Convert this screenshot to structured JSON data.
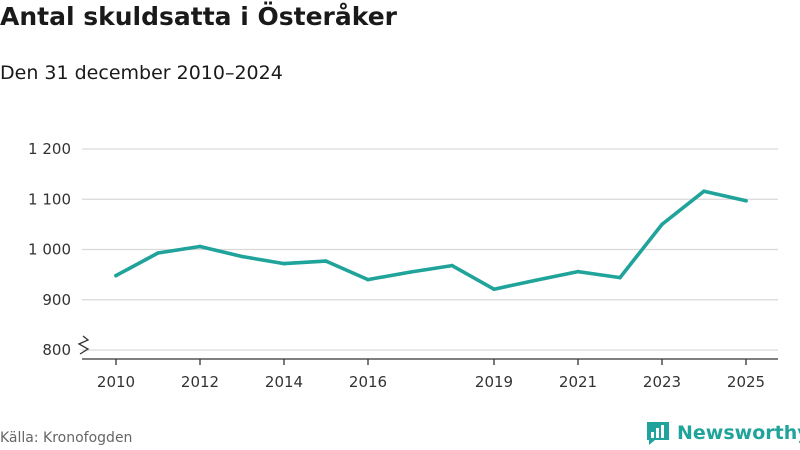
{
  "header": {
    "title": "Antal skuldsatta i Österåker",
    "subtitle": "Den 31 december 2010–2024"
  },
  "footer": {
    "source": "Källa: Kronofogden",
    "brand": "Newsworthy"
  },
  "colors": {
    "line": "#1fa39a",
    "grid": "#d9d9d9",
    "axis": "#333333",
    "brand": "#20a39b"
  },
  "chart_data": {
    "type": "line",
    "title": "Antal skuldsatta i Österåker",
    "subtitle": "Den 31 december 2010–2024",
    "xlabel": "",
    "ylabel": "",
    "x": [
      2010,
      2011,
      2012,
      2013,
      2014,
      2015,
      2016,
      2017,
      2018,
      2019,
      2020,
      2021,
      2022,
      2023,
      2024,
      2025
    ],
    "series": [
      {
        "name": "Antal skuldsatta",
        "values": [
          948,
          993,
          1006,
          986,
          972,
          977,
          940,
          955,
          968,
          921,
          939,
          956,
          944,
          1050,
          1116,
          1097
        ]
      }
    ],
    "xticks": [
      2010,
      2012,
      2014,
      2016,
      2019,
      2021,
      2023,
      2025
    ],
    "xtick_labels": [
      "2010",
      "2012",
      "2014",
      "2016",
      "2019",
      "2021",
      "2023",
      "2025"
    ],
    "xlim": [
      2010,
      2025
    ],
    "yticks": [
      800,
      900,
      1000,
      1100,
      1200
    ],
    "ytick_labels": [
      "800",
      "900",
      "1 000",
      "1 100",
      "1 200"
    ],
    "ylim": [
      800,
      1200
    ],
    "grid": true,
    "axis_break": true,
    "legend": "none"
  }
}
